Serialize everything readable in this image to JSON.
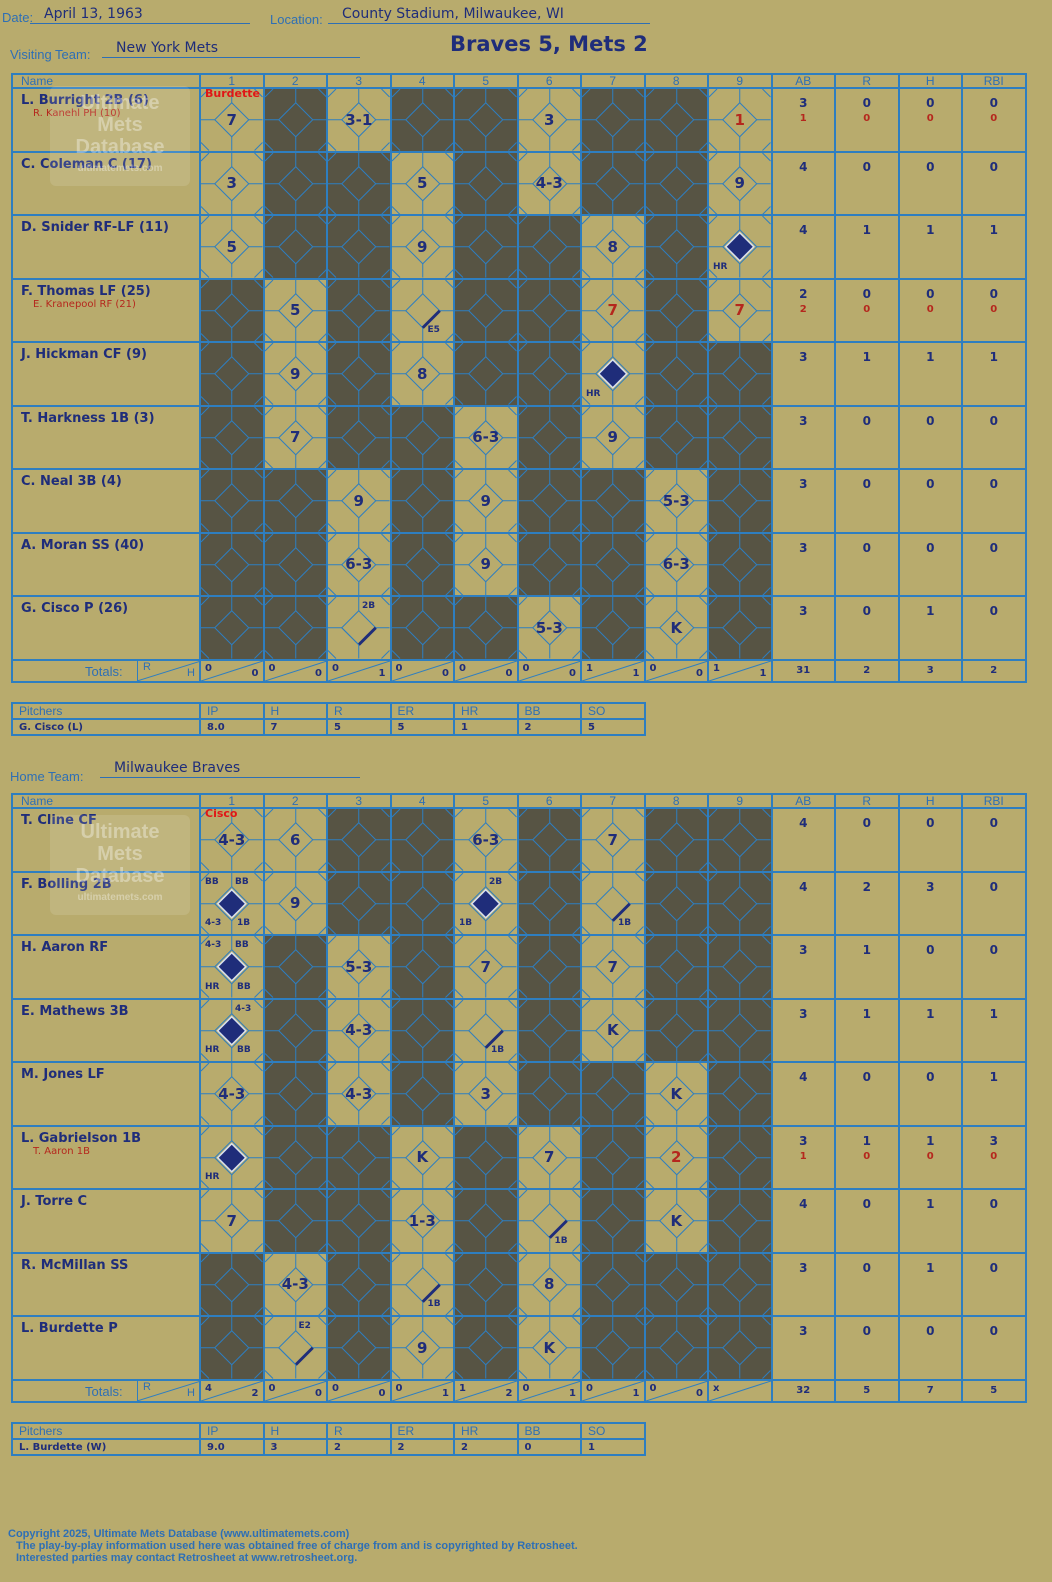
{
  "header": {
    "date_label": "Date:",
    "date": "April 13, 1963",
    "location_label": "Location:",
    "location": "County Stadium, Milwaukee, WI",
    "visiting_label": "Visiting Team:",
    "visiting_team": "New York Mets",
    "home_label": "Home Team:",
    "home_team": "Milwaukee Braves",
    "title": "Braves 5, Mets 2"
  },
  "columns": {
    "name": "Name",
    "innings": [
      "1",
      "2",
      "3",
      "4",
      "5",
      "6",
      "7",
      "8",
      "9"
    ],
    "stats": [
      "AB",
      "R",
      "H",
      "RBI"
    ]
  },
  "totals_label": "Totals:",
  "rh": {
    "r": "R",
    "h": "H"
  },
  "watermark": {
    "line1": "Ultimate",
    "line2": "Mets",
    "line3": "Database",
    "line4": "ultimatemets.com"
  },
  "visitors": {
    "pitcher_marks": {
      "1": "Burdette"
    },
    "rows": [
      {
        "name": "L. Burright 2B (6)",
        "sub": "R. Kanehl PH (10)",
        "stats": [
          "3",
          "0",
          "0",
          "0"
        ],
        "sub_stats": [
          "1",
          "0",
          "0",
          "0"
        ],
        "cells": [
          {
            "t": "7"
          },
          {
            "d": 1
          },
          {
            "t": "3-1"
          },
          {
            "d": 1
          },
          {
            "d": 1
          },
          {
            "t": "3"
          },
          {
            "d": 1
          },
          {
            "d": 1
          },
          {
            "t": "1",
            "red": 1
          }
        ]
      },
      {
        "name": "C. Coleman C (17)",
        "stats": [
          "4",
          "0",
          "0",
          "0"
        ],
        "cells": [
          {
            "t": "3"
          },
          {
            "d": 1
          },
          {
            "d": 1
          },
          {
            "t": "5"
          },
          {
            "d": 1
          },
          {
            "t": "4-3"
          },
          {
            "d": 1
          },
          {
            "d": 1
          },
          {
            "t": "9"
          }
        ]
      },
      {
        "name": "D. Snider RF-LF (11)",
        "stats": [
          "4",
          "1",
          "1",
          "1"
        ],
        "cells": [
          {
            "t": "5"
          },
          {
            "d": 1
          },
          {
            "d": 1
          },
          {
            "t": "9"
          },
          {
            "d": 1
          },
          {
            "d": 1
          },
          {
            "t": "8"
          },
          {
            "d": 1
          },
          {
            "run": 1,
            "bl": "HR"
          }
        ]
      },
      {
        "name": "F. Thomas LF (25)",
        "sub": "E. Kranepool RF (21)",
        "stats": [
          "2",
          "0",
          "0",
          "0"
        ],
        "sub_stats": [
          "2",
          "0",
          "0",
          "0"
        ],
        "cells": [
          {
            "d": 1
          },
          {
            "t": "5"
          },
          {
            "d": 1
          },
          {
            "line": 1,
            "br": "E5"
          },
          {
            "d": 1
          },
          {
            "d": 1
          },
          {
            "t": "7",
            "red": 1
          },
          {
            "d": 1
          },
          {
            "t": "7",
            "red": 1
          }
        ]
      },
      {
        "name": "J. Hickman CF (9)",
        "stats": [
          "3",
          "1",
          "1",
          "1"
        ],
        "cells": [
          {
            "d": 1
          },
          {
            "t": "9"
          },
          {
            "d": 1
          },
          {
            "t": "8"
          },
          {
            "d": 1
          },
          {
            "d": 1
          },
          {
            "run": 1,
            "bl": "HR"
          },
          {
            "d": 1
          },
          {
            "d": 1
          }
        ]
      },
      {
        "name": "T. Harkness 1B (3)",
        "stats": [
          "3",
          "0",
          "0",
          "0"
        ],
        "cells": [
          {
            "d": 1
          },
          {
            "t": "7"
          },
          {
            "d": 1
          },
          {
            "d": 1
          },
          {
            "t": "6-3"
          },
          {
            "d": 1
          },
          {
            "t": "9"
          },
          {
            "d": 1
          },
          {
            "d": 1
          }
        ]
      },
      {
        "name": "C. Neal 3B (4)",
        "stats": [
          "3",
          "0",
          "0",
          "0"
        ],
        "cells": [
          {
            "d": 1
          },
          {
            "d": 1
          },
          {
            "t": "9"
          },
          {
            "d": 1
          },
          {
            "t": "9"
          },
          {
            "d": 1
          },
          {
            "d": 1
          },
          {
            "t": "5-3"
          },
          {
            "d": 1
          }
        ]
      },
      {
        "name": "A. Moran SS (40)",
        "stats": [
          "3",
          "0",
          "0",
          "0"
        ],
        "cells": [
          {
            "d": 1
          },
          {
            "d": 1
          },
          {
            "t": "6-3"
          },
          {
            "d": 1
          },
          {
            "t": "9"
          },
          {
            "d": 1
          },
          {
            "d": 1
          },
          {
            "t": "6-3"
          },
          {
            "d": 1
          }
        ]
      },
      {
        "name": "G. Cisco P (26)",
        "stats": [
          "3",
          "0",
          "1",
          "0"
        ],
        "cells": [
          {
            "d": 1
          },
          {
            "d": 1
          },
          {
            "line": 2,
            "tr": "2B"
          },
          {
            "d": 1
          },
          {
            "d": 1
          },
          {
            "t": "5-3"
          },
          {
            "d": 1
          },
          {
            "t": "K"
          },
          {
            "d": 1
          }
        ]
      }
    ],
    "totals": [
      [
        "0",
        "0"
      ],
      [
        "0",
        "0"
      ],
      [
        "0",
        "1"
      ],
      [
        "0",
        "0"
      ],
      [
        "0",
        "0"
      ],
      [
        "0",
        "0"
      ],
      [
        "1",
        "1"
      ],
      [
        "0",
        "0"
      ],
      [
        "1",
        "1"
      ]
    ],
    "totals_stats": [
      "31",
      "2",
      "3",
      "2"
    ],
    "pitchers_header": [
      "Pitchers",
      "IP",
      "H",
      "R",
      "ER",
      "HR",
      "BB",
      "SO"
    ],
    "pitchers": [
      [
        "G. Cisco (L)",
        "8.0",
        "7",
        "5",
        "5",
        "1",
        "2",
        "5"
      ]
    ]
  },
  "home": {
    "pitcher_marks": {
      "1": "Cisco"
    },
    "rows": [
      {
        "name": "T. Cline CF",
        "stats": [
          "4",
          "0",
          "0",
          "0"
        ],
        "cells": [
          {
            "t": "4-3"
          },
          {
            "t": "6"
          },
          {
            "d": 1
          },
          {
            "d": 1
          },
          {
            "t": "6-3"
          },
          {
            "d": 1
          },
          {
            "t": "7"
          },
          {
            "d": 1
          },
          {
            "d": 1
          }
        ]
      },
      {
        "name": "F. Bolling 2B",
        "stats": [
          "4",
          "2",
          "3",
          "0"
        ],
        "cells": [
          {
            "run": 1,
            "tl": "BB",
            "tr": "BB",
            "bl": "4-3",
            "br": "1B"
          },
          {
            "t": "9"
          },
          {
            "d": 1
          },
          {
            "d": 1
          },
          {
            "run": 1,
            "tr": "2B",
            "bl": "1B"
          },
          {
            "d": 1
          },
          {
            "line": 1,
            "br": "1B"
          },
          {
            "d": 1
          },
          {
            "d": 1
          }
        ]
      },
      {
        "name": "H. Aaron RF",
        "stats": [
          "3",
          "1",
          "0",
          "0"
        ],
        "cells": [
          {
            "run": 1,
            "tl": "4-3",
            "tr": "BB",
            "bl": "HR",
            "br": "BB"
          },
          {
            "d": 1
          },
          {
            "t": "5-3"
          },
          {
            "d": 1
          },
          {
            "t": "7"
          },
          {
            "d": 1
          },
          {
            "t": "7"
          },
          {
            "d": 1
          },
          {
            "d": 1
          }
        ]
      },
      {
        "name": "E. Mathews 3B",
        "stats": [
          "3",
          "1",
          "1",
          "1"
        ],
        "cells": [
          {
            "run": 1,
            "tr": "4-3",
            "bl": "HR",
            "br": "BB"
          },
          {
            "d": 1
          },
          {
            "t": "4-3"
          },
          {
            "d": 1
          },
          {
            "line": 1,
            "br": "1B"
          },
          {
            "d": 1
          },
          {
            "t": "K"
          },
          {
            "d": 1
          },
          {
            "d": 1
          }
        ]
      },
      {
        "name": "M. Jones LF",
        "stats": [
          "4",
          "0",
          "0",
          "1"
        ],
        "cells": [
          {
            "t": "4-3"
          },
          {
            "d": 1
          },
          {
            "t": "4-3"
          },
          {
            "d": 1
          },
          {
            "t": "3"
          },
          {
            "d": 1
          },
          {
            "d": 1
          },
          {
            "t": "K"
          },
          {
            "d": 1
          }
        ]
      },
      {
        "name": "L. Gabrielson 1B",
        "sub": "T. Aaron 1B",
        "stats": [
          "3",
          "1",
          "1",
          "3"
        ],
        "sub_stats": [
          "1",
          "0",
          "0",
          "0"
        ],
        "cells": [
          {
            "run": 1,
            "bl": "HR"
          },
          {
            "d": 1
          },
          {
            "d": 1
          },
          {
            "t": "K"
          },
          {
            "d": 1
          },
          {
            "t": "7"
          },
          {
            "d": 1
          },
          {
            "t": "2",
            "red": 1
          },
          {
            "d": 1
          }
        ]
      },
      {
        "name": "J. Torre C",
        "stats": [
          "4",
          "0",
          "1",
          "0"
        ],
        "cells": [
          {
            "t": "7"
          },
          {
            "d": 1
          },
          {
            "d": 1
          },
          {
            "t": "1-3"
          },
          {
            "d": 1
          },
          {
            "line": 1,
            "br": "1B"
          },
          {
            "d": 1
          },
          {
            "t": "K"
          },
          {
            "d": 1
          }
        ]
      },
      {
        "name": "R. McMillan SS",
        "stats": [
          "3",
          "0",
          "1",
          "0"
        ],
        "cells": [
          {
            "d": 1
          },
          {
            "t": "4-3"
          },
          {
            "d": 1
          },
          {
            "line": 1,
            "br": "1B"
          },
          {
            "d": 1
          },
          {
            "t": "8"
          },
          {
            "d": 1
          },
          {
            "d": 1
          },
          {
            "d": 1
          }
        ]
      },
      {
        "name": "L. Burdette P",
        "stats": [
          "3",
          "0",
          "0",
          "0"
        ],
        "cells": [
          {
            "d": 1
          },
          {
            "line": 2,
            "tr": "E2"
          },
          {
            "d": 1
          },
          {
            "t": "9"
          },
          {
            "d": 1
          },
          {
            "t": "K"
          },
          {
            "d": 1
          },
          {
            "d": 1
          },
          {
            "d": 1
          }
        ]
      }
    ],
    "totals": [
      [
        "4",
        "2"
      ],
      [
        "0",
        "0"
      ],
      [
        "0",
        "0"
      ],
      [
        "0",
        "1"
      ],
      [
        "1",
        "2"
      ],
      [
        "0",
        "1"
      ],
      [
        "0",
        "1"
      ],
      [
        "0",
        "0"
      ],
      [
        "x",
        ""
      ]
    ],
    "totals_stats": [
      "32",
      "5",
      "7",
      "5"
    ],
    "pitchers_header": [
      "Pitchers",
      "IP",
      "H",
      "R",
      "ER",
      "HR",
      "BB",
      "SO"
    ],
    "pitchers": [
      [
        "L. Burdette (W)",
        "9.0",
        "3",
        "2",
        "2",
        "2",
        "0",
        "1"
      ]
    ]
  },
  "footer": {
    "line1": "Copyright 2025, Ultimate Mets Database (www.ultimatemets.com)",
    "line2": "The play-by-play information used here was obtained free of charge from and is copyrighted by Retrosheet.",
    "line3": "Interested parties may contact Retrosheet at www.retrosheet.org."
  },
  "colors": {
    "diamond_line": "#2e7ec0",
    "dark_cell": "#575444",
    "run_fill": "#1f2d7a",
    "paper": "#b8ab6d"
  }
}
